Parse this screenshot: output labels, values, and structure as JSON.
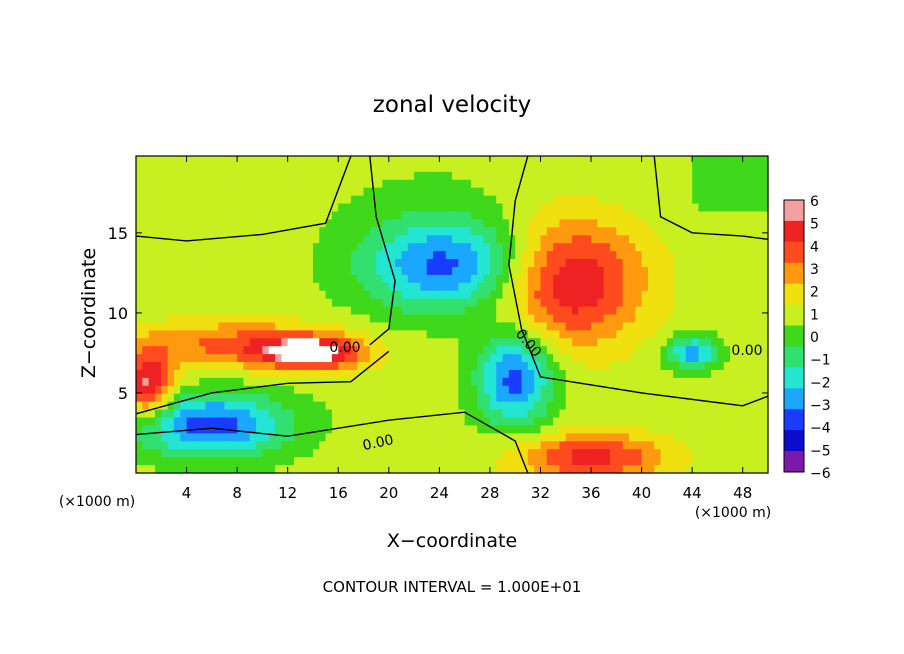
{
  "chart_data": {
    "type": "heatmap",
    "title": "zonal velocity",
    "xlabel": "X−coordinate",
    "ylabel": "Z−coordinate",
    "x_unit_left": "(×1000 m)",
    "x_unit_right": "(×1000 m)",
    "footer": "CONTOUR INTERVAL = 1.000E+01",
    "xlim": [
      0,
      50
    ],
    "ylim": [
      0,
      19.8
    ],
    "x_ticks": [
      4,
      8,
      12,
      16,
      20,
      24,
      28,
      32,
      36,
      40,
      44,
      48
    ],
    "y_ticks": [
      5,
      10,
      15
    ],
    "colorbar": {
      "range": [
        -6,
        6
      ],
      "ticks": [
        "6",
        "5",
        "4",
        "3",
        "2",
        "1",
        "0",
        "−1",
        "−2",
        "−3",
        "−4",
        "−5",
        "−6"
      ],
      "colors": [
        "#f4a0a0",
        "#ee2222",
        "#ff4b1e",
        "#ff9a10",
        "#f0e010",
        "#c8f020",
        "#3fd81a",
        "#32e070",
        "#22e6d2",
        "#1aa8ff",
        "#1a3cff",
        "#0c0ccc",
        "#7b1aa8"
      ],
      "saturated_color": "#ffffff"
    },
    "contour_labels": [
      "0.00",
      "0.00",
      "0.00",
      "0.00"
    ],
    "blobs": [
      {
        "x": 25,
        "z": 13,
        "v": -5,
        "rx": 7,
        "rz": 3
      },
      {
        "x": 34,
        "z": 12,
        "v": 5,
        "rx": 6,
        "rz": 4
      },
      {
        "x": 30,
        "z": 6,
        "v": -5,
        "rx": 3,
        "rz": 3
      },
      {
        "x": 8,
        "z": 8,
        "v": 3,
        "rx": 8,
        "rz": 1.5
      },
      {
        "x": 14,
        "z": 7.5,
        "v": 5,
        "rx": 4,
        "rz": 1
      },
      {
        "x": 6,
        "z": 3,
        "v": -5,
        "rx": 6,
        "rz": 2
      },
      {
        "x": 1,
        "z": 5.5,
        "v": 5,
        "rx": 2,
        "rz": 2
      },
      {
        "x": 44,
        "z": 7.5,
        "v": -4,
        "rx": 2,
        "rz": 1
      },
      {
        "x": 36,
        "z": 1,
        "v": 4,
        "rx": 6,
        "rz": 1.5
      }
    ]
  }
}
